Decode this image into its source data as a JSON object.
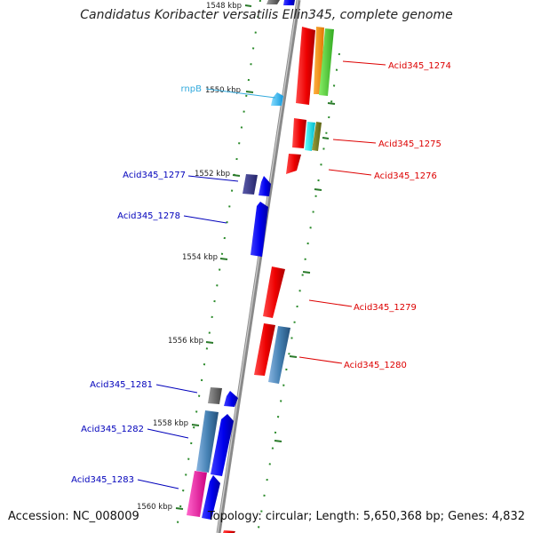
{
  "title": "Candidatus Koribacter versatilis Ellin345, complete genome",
  "accession": "Accession: NC_008009",
  "summary": "Topology: circular; Length: 5,650,368 bp; Genes: 4,832",
  "colors": {
    "forward_label": "#dd0000",
    "reverse_label": "#0000bb",
    "rna_label": "#33aadd",
    "tick": "#2a7a2a",
    "backbone": "#8a8a8a"
  },
  "scale_ticks": [
    {
      "label": "1548 kbp"
    },
    {
      "label": "1550 kbp"
    },
    {
      "label": "1552 kbp"
    },
    {
      "label": "1554 kbp"
    },
    {
      "label": "1556 kbp"
    },
    {
      "label": "1558 kbp"
    },
    {
      "label": "1560 kbp"
    }
  ],
  "gene_labels": [
    {
      "text": "Acid345_1274",
      "strand": "forward"
    },
    {
      "text": "rnpB",
      "strand": "rna"
    },
    {
      "text": "Acid345_1275",
      "strand": "forward"
    },
    {
      "text": "Acid345_1276",
      "strand": "forward"
    },
    {
      "text": "Acid345_1277",
      "strand": "reverse"
    },
    {
      "text": "Acid345_1278",
      "strand": "reverse"
    },
    {
      "text": "Acid345_1279",
      "strand": "forward"
    },
    {
      "text": "Acid345_1280",
      "strand": "forward"
    },
    {
      "text": "Acid345_1281",
      "strand": "reverse"
    },
    {
      "text": "Acid345_1282",
      "strand": "reverse"
    },
    {
      "text": "Acid345_1283",
      "strand": "reverse"
    }
  ]
}
